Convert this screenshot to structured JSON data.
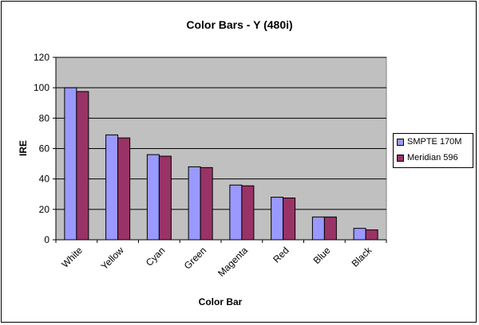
{
  "chart_data": {
    "type": "bar",
    "title": "Color Bars - Y (480i)",
    "xlabel": "Color Bar",
    "ylabel": "IRE",
    "ylim": [
      0,
      120
    ],
    "yticks": [
      0,
      20,
      40,
      60,
      80,
      100,
      120
    ],
    "ytick_labels": [
      "0",
      "20",
      "40",
      "60",
      "80",
      "100",
      "120"
    ],
    "grid": true,
    "legend_position": "right",
    "plot_background": "#c0c0c0",
    "categories": [
      "White",
      "Yellow",
      "Cyan",
      "Green",
      "Magenta",
      "Red",
      "Blue",
      "Black"
    ],
    "series": [
      {
        "name": "SMPTE 170M",
        "color": "#9999ff",
        "values": [
          100,
          69,
          56,
          48,
          36,
          28,
          15,
          7.5
        ]
      },
      {
        "name": "Meridian 596",
        "color": "#993366",
        "values": [
          97.5,
          67,
          55,
          47.5,
          35.5,
          27.5,
          15,
          6.5
        ]
      }
    ]
  }
}
